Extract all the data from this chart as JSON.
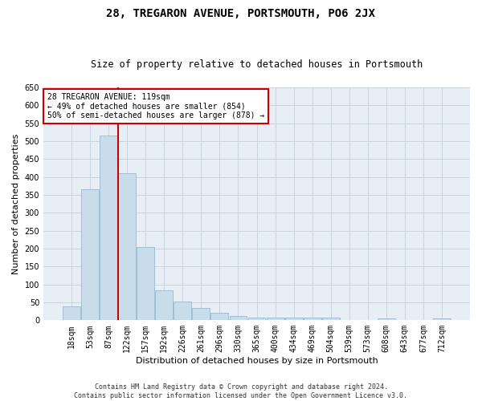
{
  "title": "28, TREGARON AVENUE, PORTSMOUTH, PO6 2JX",
  "subtitle": "Size of property relative to detached houses in Portsmouth",
  "xlabel": "Distribution of detached houses by size in Portsmouth",
  "ylabel": "Number of detached properties",
  "footer_line1": "Contains HM Land Registry data © Crown copyright and database right 2024.",
  "footer_line2": "Contains public sector information licensed under the Open Government Licence v3.0.",
  "bar_labels": [
    "18sqm",
    "53sqm",
    "87sqm",
    "122sqm",
    "157sqm",
    "192sqm",
    "226sqm",
    "261sqm",
    "296sqm",
    "330sqm",
    "365sqm",
    "400sqm",
    "434sqm",
    "469sqm",
    "504sqm",
    "539sqm",
    "573sqm",
    "608sqm",
    "643sqm",
    "677sqm",
    "712sqm"
  ],
  "bar_values": [
    38,
    365,
    515,
    410,
    205,
    83,
    53,
    35,
    22,
    11,
    8,
    8,
    8,
    8,
    8,
    0,
    0,
    5,
    0,
    0,
    5
  ],
  "bar_color": "#c9dce9",
  "bar_edgecolor": "#9ab8cd",
  "vline_x": 2.5,
  "vline_color": "#cc0000",
  "annotation_text": "28 TREGARON AVENUE: 119sqm\n← 49% of detached houses are smaller (854)\n50% of semi-detached houses are larger (878) →",
  "annotation_box_color": "#ffffff",
  "annotation_box_edgecolor": "#cc0000",
  "ylim": [
    0,
    650
  ],
  "yticks": [
    0,
    50,
    100,
    150,
    200,
    250,
    300,
    350,
    400,
    450,
    500,
    550,
    600,
    650
  ],
  "grid_color": "#c8d4e0",
  "bg_color": "#e8eef5",
  "title_fontsize": 10,
  "subtitle_fontsize": 8.5,
  "ylabel_fontsize": 8,
  "xlabel_fontsize": 8,
  "tick_fontsize": 7,
  "annotation_fontsize": 7,
  "footer_fontsize": 6
}
